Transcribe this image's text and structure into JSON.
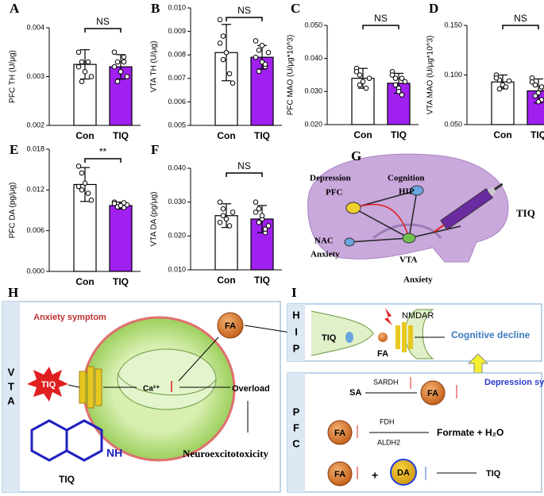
{
  "chart_data": [
    {
      "type": "bar",
      "panel": "A",
      "ylabel": "PFC TH (U/μg)",
      "categories": [
        "Con",
        "TIQ"
      ],
      "values": [
        0.00325,
        0.0032
      ],
      "errors": [
        0.0003,
        0.00025
      ],
      "colors": [
        "#ffffff",
        "#a020f0"
      ],
      "points": [
        [
          0.0035,
          0.0033,
          0.0031,
          0.0033,
          0.003,
          0.0032,
          0.0029
        ],
        [
          0.0035,
          0.0033,
          0.0031,
          0.0034,
          0.003,
          0.0032,
          0.0029,
          0.0031,
          0.0033
        ]
      ],
      "annotation": "NS",
      "ylim": [
        0.002,
        0.004
      ],
      "yticks": [
        0.002,
        0.003,
        0.004
      ]
    },
    {
      "type": "bar",
      "panel": "B",
      "ylabel": "VTA TH (U/μg)",
      "categories": [
        "Con",
        "TIQ"
      ],
      "values": [
        0.0081,
        0.0079
      ],
      "errors": [
        0.0012,
        0.0005
      ],
      "colors": [
        "#ffffff",
        "#a020f0"
      ],
      "points": [
        [
          0.0095,
          0.0088,
          0.0081,
          0.0072,
          0.0068,
          0.0085,
          0.0078
        ],
        [
          0.0086,
          0.0082,
          0.0077,
          0.0075,
          0.0081,
          0.0079,
          0.0073,
          0.0084,
          0.0076
        ]
      ],
      "annotation": "NS",
      "ylim": [
        0.005,
        0.01
      ],
      "yticks": [
        0.005,
        0.006,
        0.007,
        0.008,
        0.009,
        {
          "value": 0.01,
          "label": "0.010"
        }
      ]
    },
    {
      "type": "bar",
      "panel": "C",
      "ylabel": "PFC MAO (U/μg*10^3)",
      "categories": [
        "Con",
        "TIQ"
      ],
      "values": [
        0.034,
        0.0325
      ],
      "errors": [
        0.003,
        0.003
      ],
      "colors": [
        "#ffffff",
        "#a020f0"
      ],
      "points": [
        [
          0.037,
          0.035,
          0.033,
          0.031,
          0.034,
          0.036,
          0.032
        ],
        [
          0.036,
          0.034,
          0.031,
          0.029,
          0.033,
          0.035,
          0.032,
          0.03,
          0.034
        ]
      ],
      "annotation": "NS",
      "ylim": [
        0.02,
        0.05
      ],
      "yticks": [
        {
          "value": 0.02,
          "label": "0.020"
        },
        {
          "value": 0.03,
          "label": "0.030"
        },
        {
          "value": 0.04,
          "label": "0.040"
        },
        {
          "value": 0.05,
          "label": "0.050"
        }
      ]
    },
    {
      "type": "bar",
      "panel": "D",
      "ylabel": "VTA MAO (U/μg*10^3)",
      "categories": [
        "Con",
        "TIQ"
      ],
      "values": [
        0.093,
        0.084
      ],
      "errors": [
        0.007,
        0.012
      ],
      "colors": [
        "#ffffff",
        "#a020f0"
      ],
      "points": [
        [
          0.1,
          0.095,
          0.09,
          0.088,
          0.094,
          0.097,
          0.086
        ],
        [
          0.097,
          0.09,
          0.082,
          0.075,
          0.086,
          0.093,
          0.079,
          0.073,
          0.088
        ]
      ],
      "annotation": "NS",
      "ylim": [
        0.05,
        0.15
      ],
      "yticks": [
        {
          "value": 0.05,
          "label": "0.050"
        },
        {
          "value": 0.1,
          "label": "0.100"
        },
        {
          "value": 0.15,
          "label": "0.150"
        }
      ]
    },
    {
      "type": "bar",
      "panel": "E",
      "ylabel": "PFC DA (pg/μg)",
      "categories": [
        "Con",
        "TIQ"
      ],
      "values": [
        0.0128,
        0.0097
      ],
      "errors": [
        0.0025,
        0.0005
      ],
      "colors": [
        "#ffffff",
        "#a020f0"
      ],
      "points": [
        [
          0.0155,
          0.0145,
          0.013,
          0.0115,
          0.0105,
          0.0125,
          0.012
        ],
        [
          0.0102,
          0.0099,
          0.0096,
          0.0094,
          0.0098,
          0.01,
          0.0095,
          0.0097,
          0.0101
        ]
      ],
      "annotation": "**",
      "ylim": [
        0,
        0.018
      ],
      "yticks": [
        {
          "value": 0,
          "label": "0.000"
        },
        0.006,
        0.012,
        0.018
      ]
    },
    {
      "type": "bar",
      "panel": "F",
      "ylabel": "VTA DA (pg/μg)",
      "categories": [
        "Con",
        "TIQ"
      ],
      "values": [
        0.026,
        0.025
      ],
      "errors": [
        0.0035,
        0.004
      ],
      "colors": [
        "#ffffff",
        "#a020f0"
      ],
      "points": [
        [
          0.03,
          0.028,
          0.025,
          0.023,
          0.027,
          0.024,
          0.026
        ],
        [
          0.03,
          0.028,
          0.025,
          0.021,
          0.023,
          0.027,
          0.024,
          0.026,
          0.022
        ]
      ],
      "annotation": "NS",
      "ylim": [
        0.01,
        0.04
      ],
      "yticks": [
        {
          "value": 0.01,
          "label": "0.010"
        },
        {
          "value": 0.02,
          "label": "0.020"
        },
        {
          "value": 0.03,
          "label": "0.030"
        },
        {
          "value": 0.04,
          "label": "0.040"
        }
      ]
    }
  ],
  "diagrams": {
    "G": {
      "panel": "G",
      "labels": [
        "Depression",
        "PFC",
        "Cognition",
        "HIP",
        "NAC",
        "Anxiety",
        "VTA",
        "TIQ",
        "Anxiety"
      ]
    },
    "H": {
      "panel": "H",
      "region": [
        "V",
        "T",
        "A"
      ],
      "symptom": "Anxiety symptom",
      "tiq": "TIQ",
      "ion": "Ca²⁺",
      "fa": "FA",
      "overload": "Overload",
      "outcome": "Neuroexcitotoxicity",
      "nh": "NH",
      "structure": "TIQ"
    },
    "I": {
      "panel": "I",
      "hip": [
        "H",
        "I",
        "P"
      ],
      "tiq": "TIQ",
      "fa": "FA",
      "receptor": "NMDAR",
      "outcome": "Cognitive decline",
      "pfc": [
        "P",
        "F",
        "C"
      ],
      "sa": "SA",
      "sardh": "SARDH",
      "fa2": "FA",
      "symptom": "Depression symptom",
      "fa3": "FA",
      "fdh": "FDH",
      "aldh2": "ALDH2",
      "formate": "Formate + H₂O",
      "fa4": "FA",
      "plus": "+",
      "da": "DA",
      "tiq2": "TIQ"
    }
  }
}
